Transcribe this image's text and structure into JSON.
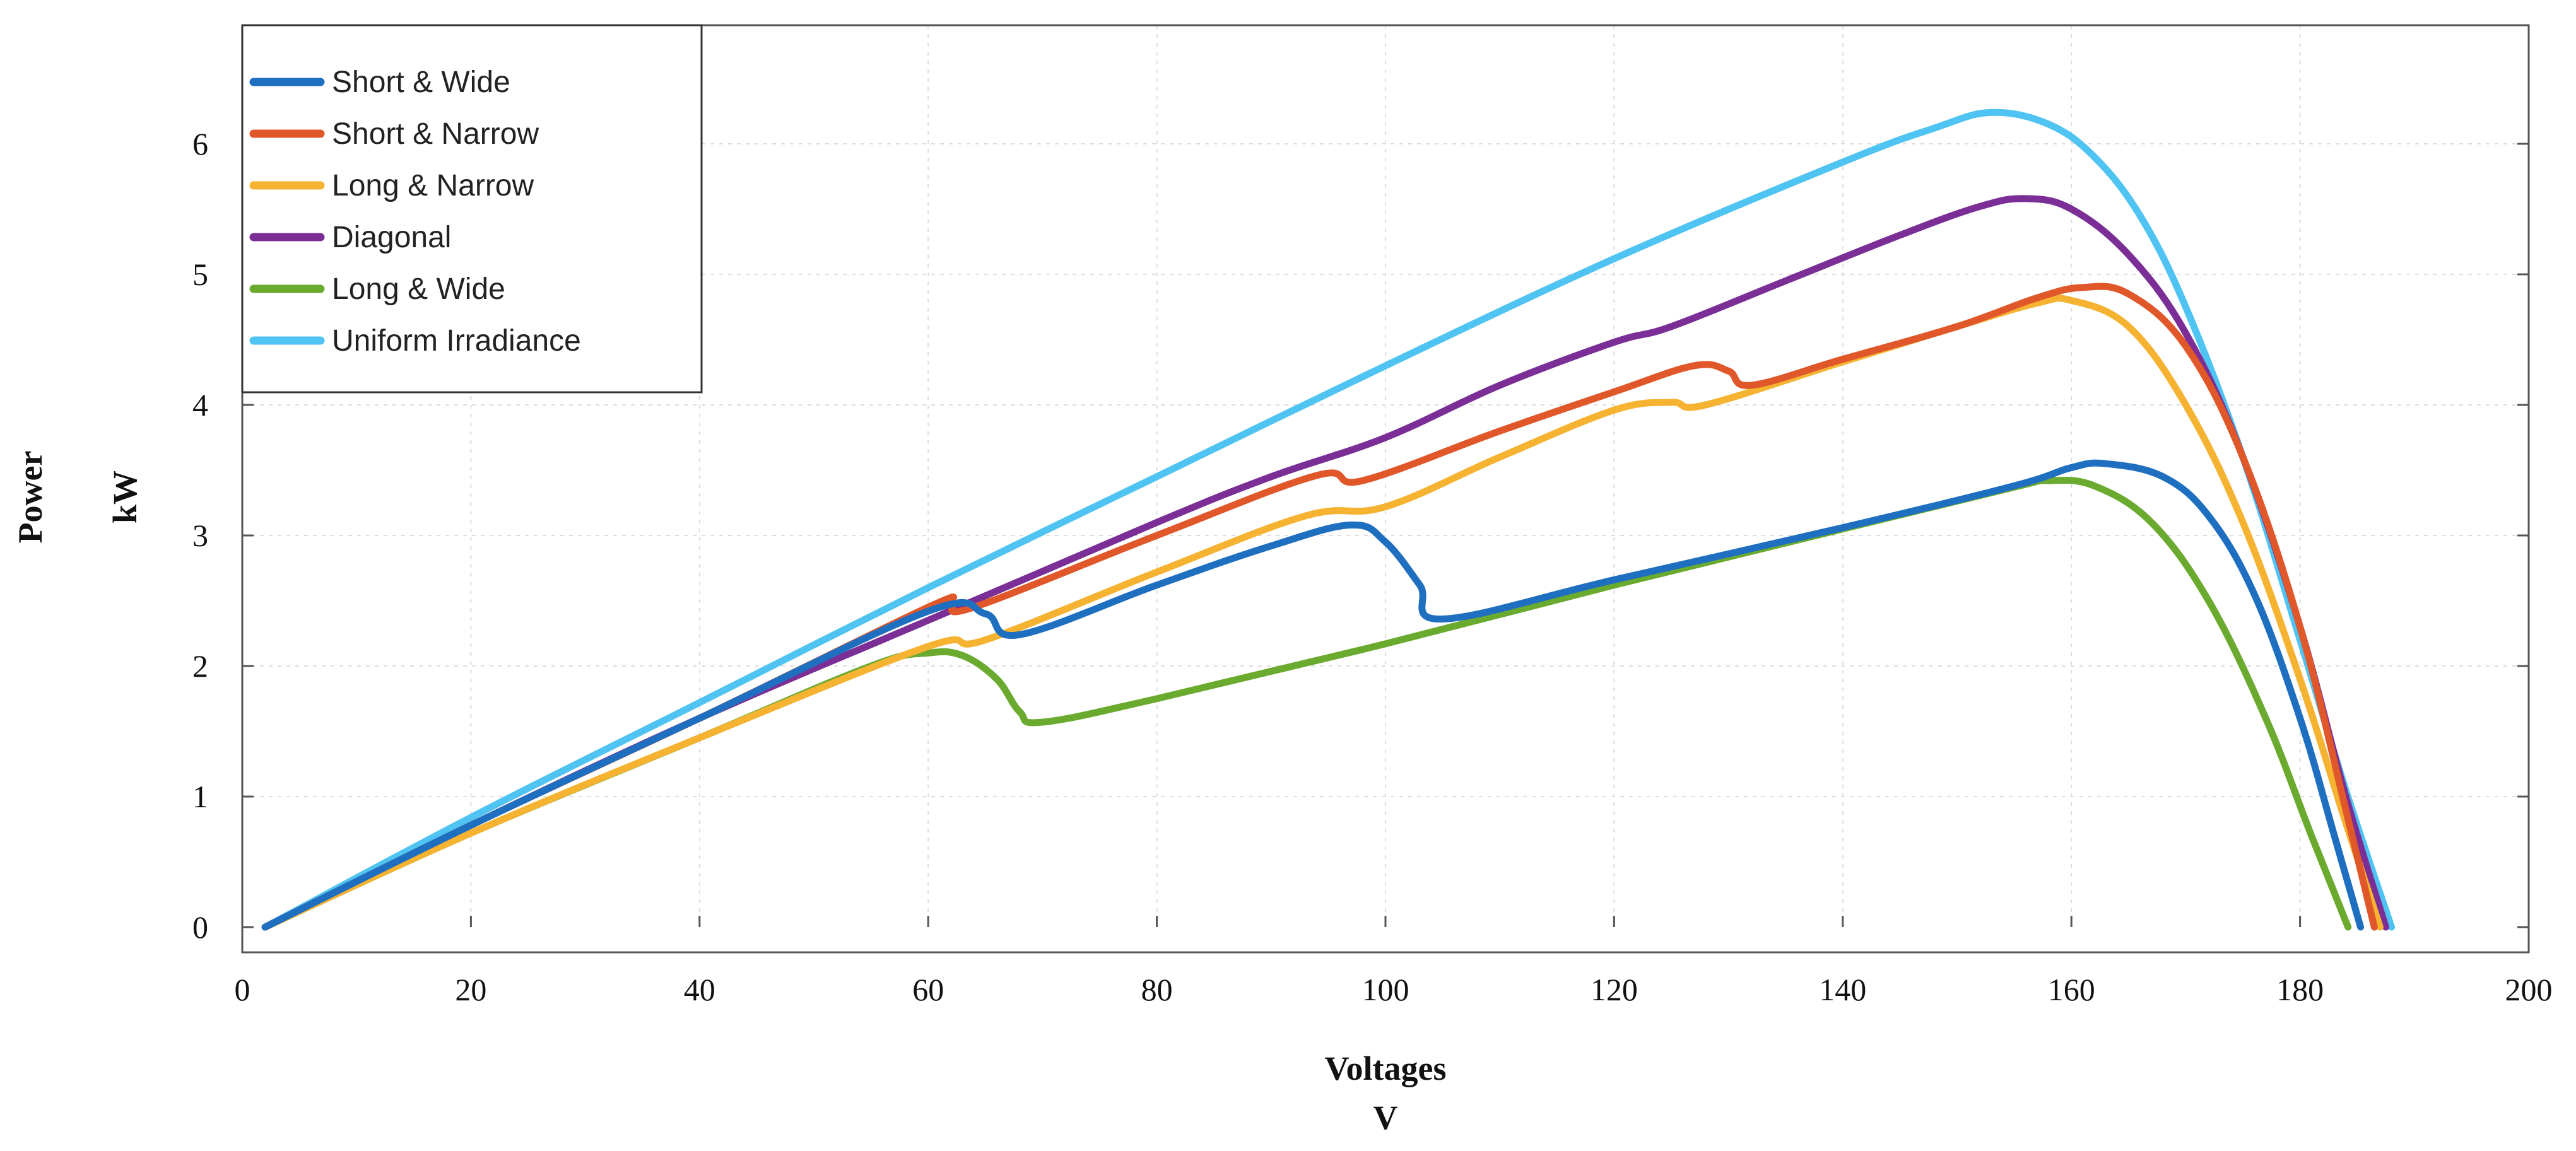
{
  "chart_data": {
    "type": "line",
    "title": "",
    "xlabel": "Voltages",
    "xlabel_unit": "V",
    "ylabel": "Power",
    "ylabel_unit": "kW",
    "xlim": [
      0,
      200
    ],
    "ylim": [
      0,
      7
    ],
    "xticks": [
      0,
      20,
      40,
      60,
      80,
      100,
      120,
      140,
      160,
      180,
      200
    ],
    "yticks": [
      0,
      1,
      2,
      3,
      4,
      5,
      6
    ],
    "grid": true,
    "legend_position": "top-left",
    "series": [
      {
        "name": "Short & Wide",
        "color": "#1f6fc0",
        "x": [
          2,
          20,
          40,
          60,
          65,
          68,
          80,
          90,
          97,
          100,
          103,
          105,
          120,
          140,
          155,
          160,
          163,
          168,
          172,
          176,
          180,
          183,
          185.3
        ],
        "y": [
          0,
          0.78,
          1.6,
          2.42,
          2.4,
          2.24,
          2.62,
          2.92,
          3.08,
          2.95,
          2.62,
          2.36,
          2.66,
          3.06,
          3.38,
          3.52,
          3.55,
          3.45,
          3.15,
          2.55,
          1.6,
          0.7,
          0
        ]
      },
      {
        "name": "Short & Narrow",
        "color": "#e0572a",
        "x": [
          2,
          20,
          40,
          60,
          62,
          64,
          80,
          94,
          98,
          110,
          120,
          127,
          130,
          132,
          140,
          150,
          157,
          161,
          165,
          170,
          175,
          180,
          184,
          186.5
        ],
        "y": [
          0,
          0.78,
          1.6,
          2.45,
          2.48,
          2.45,
          3.0,
          3.46,
          3.42,
          3.8,
          4.1,
          4.3,
          4.26,
          4.15,
          4.35,
          4.6,
          4.82,
          4.9,
          4.85,
          4.45,
          3.6,
          2.3,
          0.9,
          0
        ]
      },
      {
        "name": "Long & Narrow",
        "color": "#f5b331",
        "x": [
          2,
          20,
          40,
          60,
          65,
          80,
          93,
          100,
          110,
          120,
          125,
          128,
          140,
          150,
          157,
          160,
          165,
          170,
          175,
          180,
          184,
          187
        ],
        "y": [
          0,
          0.72,
          1.45,
          2.15,
          2.2,
          2.72,
          3.15,
          3.22,
          3.6,
          3.96,
          4.02,
          4.0,
          4.33,
          4.6,
          4.78,
          4.8,
          4.6,
          4.0,
          3.1,
          1.9,
          0.8,
          0
        ]
      },
      {
        "name": "Diagonal",
        "color": "#7a2e96",
        "x": [
          2,
          20,
          40,
          60,
          80,
          90,
          100,
          110,
          120,
          125,
          135,
          145,
          152,
          156,
          160,
          165,
          170,
          175,
          180,
          184,
          187.5
        ],
        "y": [
          0,
          0.78,
          1.6,
          2.35,
          3.1,
          3.45,
          3.75,
          4.15,
          4.48,
          4.6,
          4.95,
          5.3,
          5.52,
          5.58,
          5.5,
          5.15,
          4.55,
          3.6,
          2.3,
          1.0,
          0
        ]
      },
      {
        "name": "Long & Wide",
        "color": "#6aaa2f",
        "x": [
          2,
          20,
          40,
          55,
          60,
          63,
          66,
          68,
          70,
          80,
          100,
          120,
          140,
          155,
          158,
          162,
          167,
          172,
          177,
          181,
          184.2
        ],
        "y": [
          0,
          0.72,
          1.45,
          2.0,
          2.1,
          2.08,
          1.9,
          1.65,
          1.57,
          1.75,
          2.17,
          2.62,
          3.05,
          3.37,
          3.42,
          3.38,
          3.1,
          2.5,
          1.6,
          0.7,
          0
        ]
      },
      {
        "name": "Uniform Irradiance",
        "color": "#4fc3f1",
        "x": [
          2,
          20,
          40,
          60,
          80,
          100,
          120,
          140,
          148,
          153,
          158,
          162,
          166,
          170,
          175,
          180,
          184,
          188
        ],
        "y": [
          0,
          0.84,
          1.72,
          2.6,
          3.45,
          4.3,
          5.12,
          5.86,
          6.12,
          6.24,
          6.15,
          5.9,
          5.45,
          4.75,
          3.6,
          2.2,
          1.05,
          0
        ]
      }
    ]
  }
}
